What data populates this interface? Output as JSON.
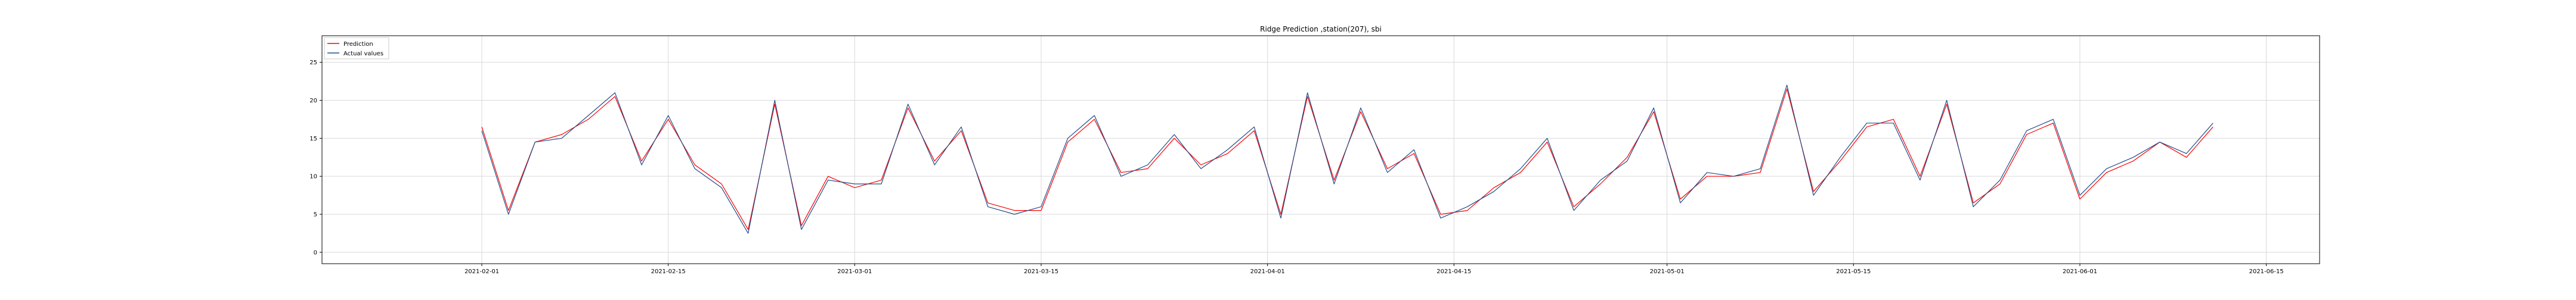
{
  "chart_data": {
    "type": "line",
    "title": "Ridge Prediction ,station(207), sbi",
    "xlabel": "",
    "ylabel": "",
    "xlim": [
      "2021-01-20",
      "2021-06-19"
    ],
    "ylim": [
      -1.5,
      28.5
    ],
    "grid": true,
    "legend_position": "top-left",
    "x_ticks": [
      "2021-02-01",
      "2021-02-15",
      "2021-03-01",
      "2021-03-15",
      "2021-04-01",
      "2021-04-15",
      "2021-05-01",
      "2021-05-15",
      "2021-06-01",
      "2021-06-15"
    ],
    "y_ticks": [
      0,
      5,
      10,
      15,
      20,
      25
    ],
    "colors": {
      "prediction": "#ff0000",
      "actual": "#1f4e8c"
    },
    "series": [
      {
        "name": "Prediction",
        "x": [
          "2021-02-01",
          "2021-02-03",
          "2021-02-05",
          "2021-02-07",
          "2021-02-09",
          "2021-02-11",
          "2021-02-13",
          "2021-02-15",
          "2021-02-17",
          "2021-02-19",
          "2021-02-21",
          "2021-02-23",
          "2021-02-25",
          "2021-02-27",
          "2021-03-01",
          "2021-03-03",
          "2021-03-05",
          "2021-03-07",
          "2021-03-09",
          "2021-03-11",
          "2021-03-13",
          "2021-03-15",
          "2021-03-17",
          "2021-03-19",
          "2021-03-21",
          "2021-03-23",
          "2021-03-25",
          "2021-03-27",
          "2021-03-29",
          "2021-03-31",
          "2021-04-02",
          "2021-04-04",
          "2021-04-06",
          "2021-04-08",
          "2021-04-10",
          "2021-04-12",
          "2021-04-14",
          "2021-04-16",
          "2021-04-18",
          "2021-04-20",
          "2021-04-22",
          "2021-04-24",
          "2021-04-26",
          "2021-04-28",
          "2021-04-30",
          "2021-05-02",
          "2021-05-04",
          "2021-05-06",
          "2021-05-08",
          "2021-05-10",
          "2021-05-12",
          "2021-05-14",
          "2021-05-16",
          "2021-05-18",
          "2021-05-20",
          "2021-05-22",
          "2021-05-24",
          "2021-05-26",
          "2021-05-28",
          "2021-05-30",
          "2021-06-01",
          "2021-06-03",
          "2021-06-05",
          "2021-06-07",
          "2021-06-09",
          "2021-06-11"
        ],
        "values": [
          16.5,
          5.5,
          14.5,
          15.5,
          17.5,
          20.5,
          12.0,
          17.5,
          11.5,
          9.0,
          3.0,
          19.5,
          3.5,
          10.0,
          8.5,
          9.5,
          19.0,
          12.0,
          16.0,
          6.5,
          5.5,
          5.5,
          14.5,
          17.5,
          10.5,
          11.0,
          15.0,
          11.5,
          13.0,
          16.0,
          5.0,
          20.5,
          9.5,
          18.5,
          11.0,
          13.0,
          5.0,
          5.5,
          8.5,
          10.5,
          14.5,
          6.0,
          9.0,
          12.5,
          18.5,
          7.0,
          10.0,
          10.0,
          10.5,
          21.5,
          8.0,
          12.0,
          16.5,
          17.5,
          10.0,
          19.5,
          6.5,
          9.0,
          15.5,
          17.0,
          7.0,
          10.5,
          12.0,
          14.5,
          12.5,
          16.5
        ]
      },
      {
        "name": "Actual values",
        "x": [
          "2021-02-01",
          "2021-02-03",
          "2021-02-05",
          "2021-02-07",
          "2021-02-09",
          "2021-02-11",
          "2021-02-13",
          "2021-02-15",
          "2021-02-17",
          "2021-02-19",
          "2021-02-21",
          "2021-02-23",
          "2021-02-25",
          "2021-02-27",
          "2021-03-01",
          "2021-03-03",
          "2021-03-05",
          "2021-03-07",
          "2021-03-09",
          "2021-03-11",
          "2021-03-13",
          "2021-03-15",
          "2021-03-17",
          "2021-03-19",
          "2021-03-21",
          "2021-03-23",
          "2021-03-25",
          "2021-03-27",
          "2021-03-29",
          "2021-03-31",
          "2021-04-02",
          "2021-04-04",
          "2021-04-06",
          "2021-04-08",
          "2021-04-10",
          "2021-04-12",
          "2021-04-14",
          "2021-04-16",
          "2021-04-18",
          "2021-04-20",
          "2021-04-22",
          "2021-04-24",
          "2021-04-26",
          "2021-04-28",
          "2021-04-30",
          "2021-05-02",
          "2021-05-04",
          "2021-05-06",
          "2021-05-08",
          "2021-05-10",
          "2021-05-12",
          "2021-05-14",
          "2021-05-16",
          "2021-05-18",
          "2021-05-20",
          "2021-05-22",
          "2021-05-24",
          "2021-05-26",
          "2021-05-28",
          "2021-05-30",
          "2021-06-01",
          "2021-06-03",
          "2021-06-05",
          "2021-06-07",
          "2021-06-09",
          "2021-06-11"
        ],
        "values": [
          16.0,
          5.0,
          14.5,
          15.0,
          18.0,
          21.0,
          11.5,
          18.0,
          11.0,
          8.5,
          2.5,
          20.0,
          3.0,
          9.5,
          9.0,
          9.0,
          19.5,
          11.5,
          16.5,
          6.0,
          5.0,
          6.0,
          15.0,
          18.0,
          10.0,
          11.5,
          15.5,
          11.0,
          13.5,
          16.5,
          4.5,
          21.0,
          9.0,
          19.0,
          10.5,
          13.5,
          4.5,
          6.0,
          8.0,
          11.0,
          15.0,
          5.5,
          9.5,
          12.0,
          19.0,
          6.5,
          10.5,
          10.0,
          11.0,
          22.0,
          7.5,
          12.5,
          17.0,
          17.0,
          9.5,
          20.0,
          6.0,
          9.5,
          16.0,
          17.5,
          7.5,
          11.0,
          12.5,
          14.5,
          13.0,
          17.0
        ]
      }
    ]
  }
}
